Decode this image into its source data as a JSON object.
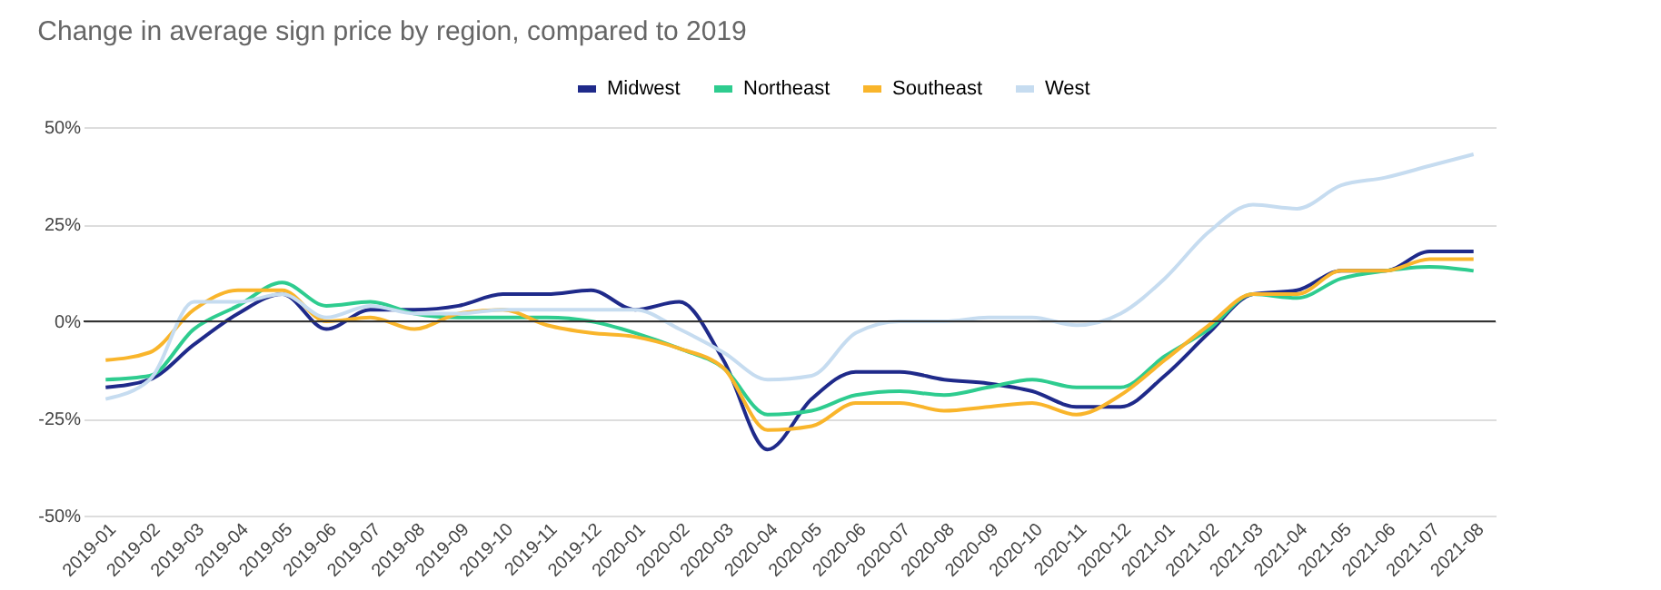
{
  "chart_data": {
    "type": "line",
    "title": "Change in average sign price by region, compared to 2019",
    "categories": [
      "2019-01",
      "2019-02",
      "2019-03",
      "2019-04",
      "2019-05",
      "2019-06",
      "2019-07",
      "2019-08",
      "2019-09",
      "2019-10",
      "2019-11",
      "2019-12",
      "2020-01",
      "2020-02",
      "2020-03",
      "2020-04",
      "2020-05",
      "2020-06",
      "2020-07",
      "2020-08",
      "2020-09",
      "2020-10",
      "2020-11",
      "2020-12",
      "2021-01",
      "2021-02",
      "2021-03",
      "2021-04",
      "2021-05",
      "2021-06",
      "2021-07",
      "2021-08"
    ],
    "series": [
      {
        "name": "Midwest",
        "color": "#1f2a8a",
        "values": [
          -17,
          -15,
          -6,
          2,
          7,
          -2,
          3,
          3,
          4,
          7,
          7,
          8,
          3,
          5,
          -10,
          -33,
          -20,
          -13,
          -13,
          -15,
          -16,
          -18,
          -22,
          -22,
          -14,
          -3,
          7,
          8,
          13,
          13,
          18,
          18
        ]
      },
      {
        "name": "Northeast",
        "color": "#2ecc8f",
        "values": [
          -15,
          -14,
          -2,
          4,
          10,
          4,
          5,
          2,
          1,
          1,
          1,
          0,
          -3,
          -7,
          -12,
          -24,
          -23,
          -19,
          -18,
          -19,
          -17,
          -15,
          -17,
          -17,
          -9,
          -2,
          7,
          6,
          11,
          13,
          14,
          13
        ]
      },
      {
        "name": "Southeast",
        "color": "#f9b52b",
        "values": [
          -10,
          -8,
          3,
          8,
          8,
          0,
          1,
          -2,
          2,
          3,
          -1,
          -3,
          -4,
          -7,
          -12,
          -28,
          -27,
          -21,
          -21,
          -23,
          -22,
          -21,
          -24,
          -19,
          -10,
          -1,
          7,
          7,
          13,
          13,
          16,
          16
        ]
      },
      {
        "name": "West",
        "color": "#c6dcf0",
        "values": [
          -20,
          -15,
          5,
          5,
          7,
          1,
          4,
          2,
          2,
          3,
          3,
          3,
          3,
          -2,
          -8,
          -15,
          -14,
          -3,
          0,
          0,
          1,
          1,
          -1,
          2,
          11,
          23,
          30,
          29,
          35,
          37,
          40,
          43
        ]
      }
    ],
    "ylim": [
      -50,
      50
    ],
    "yticks": [
      {
        "value": -50,
        "label": "-50%"
      },
      {
        "value": -25,
        "label": "-25%"
      },
      {
        "value": 0,
        "label": "0%"
      },
      {
        "value": 25,
        "label": "25%"
      },
      {
        "value": 50,
        "label": "50%"
      }
    ],
    "ref_lines": [
      {
        "axis": "y",
        "value": 0,
        "color": "#333333"
      }
    ],
    "grid": "y",
    "legend": "top",
    "marker": "none",
    "line_style": "solid"
  }
}
